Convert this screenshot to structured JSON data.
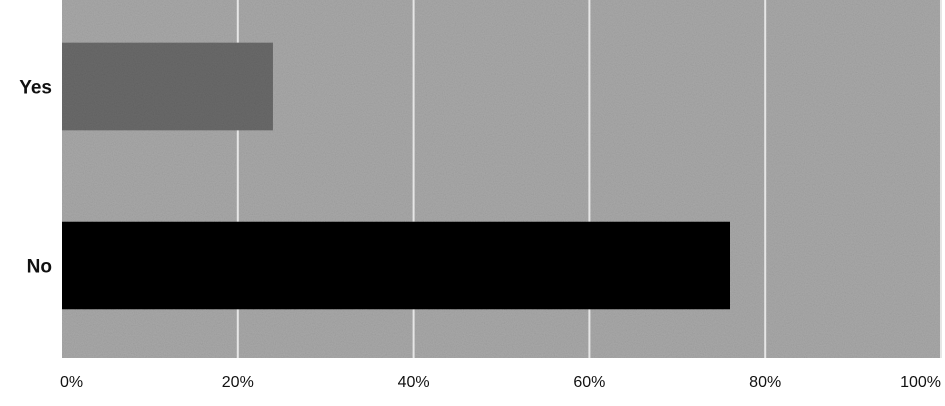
{
  "chart_data": {
    "type": "bar",
    "orientation": "horizontal",
    "categories": [
      "Yes",
      "No"
    ],
    "values": [
      24,
      76
    ],
    "x_ticks": [
      "0%",
      "20%",
      "40%",
      "60%",
      "80%",
      "100%"
    ],
    "xlim": [
      0,
      100
    ],
    "grid": true,
    "legend": "none",
    "colors": {
      "plot_background": "#a9a9a9",
      "gridline": "#e6e6e6",
      "bars": [
        "#6a6a6a",
        "#050505"
      ]
    }
  }
}
